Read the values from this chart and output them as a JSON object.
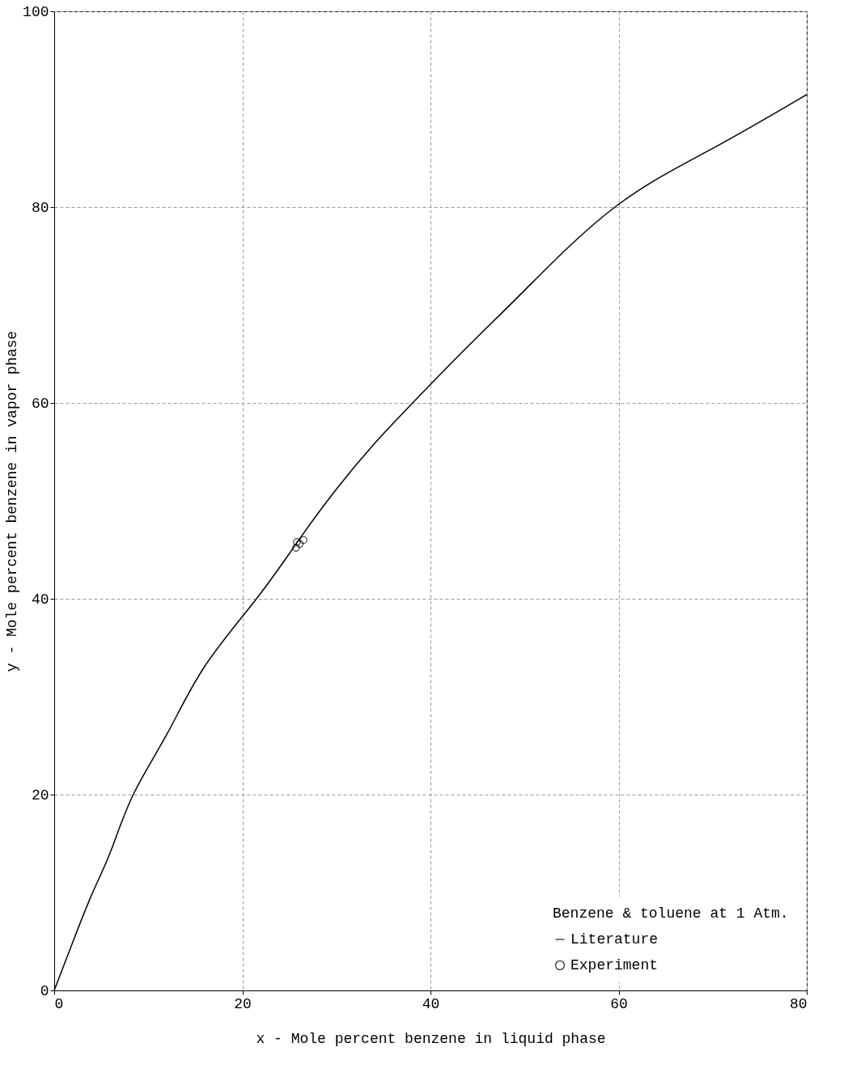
{
  "chart_data": {
    "type": "line",
    "xlabel": "x - Mole percent benzene in liquid phase",
    "ylabel": "y - Mole percent benzene in vapor phase",
    "legend_title": "Benzene & toluene at 1 Atm.",
    "legend": "bottom right",
    "grid": true,
    "xlim": [
      0,
      80
    ],
    "ylim": [
      0,
      100
    ],
    "xticks": [
      0,
      20,
      40,
      60,
      80
    ],
    "yticks": [
      0,
      20,
      40,
      60,
      80,
      100
    ],
    "series": [
      {
        "name": "Literature",
        "color": "#000000",
        "marker": "none",
        "x": [
          0,
          2,
          4,
          6,
          8.4,
          12,
          16,
          21.5,
          26,
          30,
          34,
          38.1,
          44,
          50,
          59.6,
          70,
          80
        ],
        "values": [
          0,
          5,
          9.8,
          14.2,
          20,
          26.2,
          33.1,
          40,
          46,
          51.2,
          55.8,
          60,
          65.8,
          71.5,
          80,
          86,
          91.5
        ]
      },
      {
        "name": "Experiment",
        "type": "scatter",
        "color": "#000000",
        "marker": "circle",
        "x": [
          25.7,
          25.8,
          26.1,
          26.5
        ],
        "values": [
          45.2,
          45.8,
          45.6,
          46.0
        ]
      }
    ]
  }
}
